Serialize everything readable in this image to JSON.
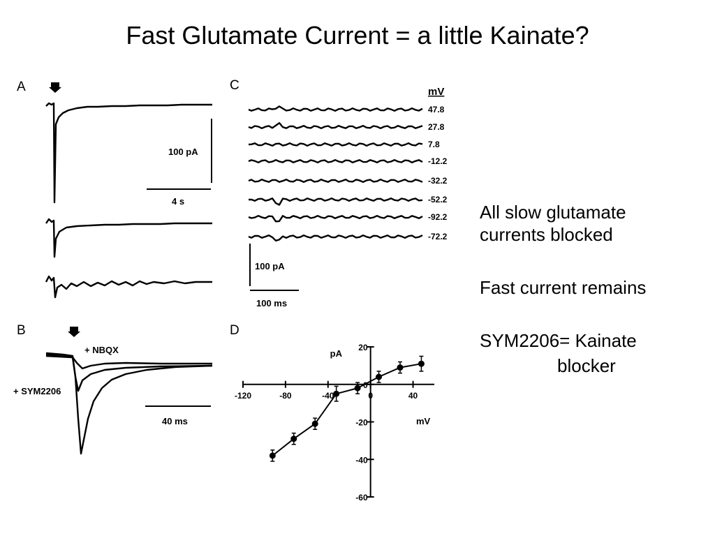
{
  "title": "Fast Glutamate Current = a little Kainate?",
  "panels": {
    "A": {
      "letter": "A",
      "scale_current": "100 pA",
      "scale_time": "4 s"
    },
    "B": {
      "letter": "B",
      "nbqx_label": "+ NBQX",
      "sym_label": "+ SYM2206",
      "scale_time": "40 ms"
    },
    "C": {
      "letter": "C",
      "unit_header": "mV",
      "voltages": [
        "47.8",
        "27.8",
        "7.8",
        "-12.2",
        "-32.2",
        "-52.2",
        "-92.2",
        "-72.2"
      ],
      "scale_current": "100 pA",
      "scale_time": "100 ms"
    },
    "D": {
      "letter": "D"
    }
  },
  "side_text": {
    "line1": "All slow glutamate",
    "line2": "currents blocked",
    "line3": "Fast current remains",
    "line4": "SYM2206= Kainate",
    "line5": "blocker"
  },
  "chart_data": {
    "type": "scatter",
    "title": "",
    "xlabel": "mV",
    "ylabel": "pA",
    "xlim": [
      -120,
      60
    ],
    "ylim": [
      -60,
      20
    ],
    "x_ticks": [
      "-120",
      "-80",
      "-40",
      "0",
      "40"
    ],
    "y_ticks": [
      "20",
      "0",
      "-20",
      "-40",
      "-60"
    ],
    "grid": false,
    "series": [
      {
        "x": [
          -92.2,
          -72.2,
          -52.2,
          -32.2,
          -12.2,
          7.8,
          27.8,
          47.8
        ],
        "values": [
          -38,
          -29,
          -21,
          -5,
          -2,
          4,
          9,
          11
        ],
        "error": [
          3,
          3,
          3,
          4,
          3,
          3,
          3,
          4
        ]
      }
    ]
  }
}
